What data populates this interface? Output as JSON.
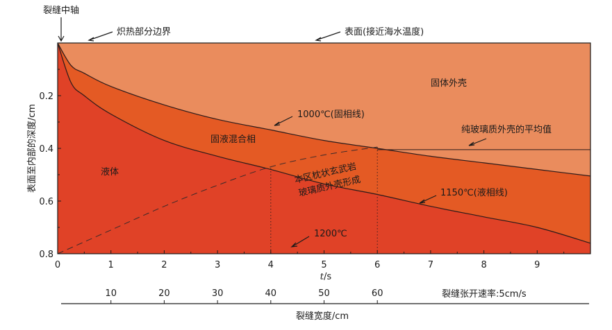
{
  "chart_data": {
    "type": "area",
    "xlabel_var": "t",
    "xlabel_unit": "/s",
    "ylabel": "表面至内部的深度/cm",
    "xlim": [
      0,
      10
    ],
    "ylim": [
      0.8,
      0
    ],
    "x_ticks": [
      "0",
      "1",
      "2",
      "3",
      "4",
      "5",
      "6",
      "7",
      "8",
      "9"
    ],
    "y_ticks": [
      "0.2",
      "0.4",
      "0.6",
      "0.8"
    ],
    "secondary_axis": {
      "label": "裂缝宽度/cm",
      "rate_label": "裂缝张开速率:5cm/s",
      "ticks": [
        {
          "t": 1,
          "label": "10"
        },
        {
          "t": 2,
          "label": "20"
        },
        {
          "t": 3,
          "label": "30"
        },
        {
          "t": 4,
          "label": "40"
        },
        {
          "t": 5,
          "label": "50"
        },
        {
          "t": 6,
          "label": "60"
        }
      ]
    },
    "series": [
      {
        "name": "1000℃(固相线)",
        "x": [
          0,
          0.25,
          0.5,
          1,
          2,
          3,
          4,
          5,
          6,
          7,
          8,
          9,
          10
        ],
        "y": [
          0,
          0.085,
          0.115,
          0.165,
          0.235,
          0.29,
          0.33,
          0.37,
          0.4,
          0.43,
          0.455,
          0.48,
          0.505
        ]
      },
      {
        "name": "1150℃(液相线)",
        "x": [
          0,
          0.25,
          0.5,
          1,
          2,
          3,
          4,
          5,
          6,
          7,
          8,
          9,
          10
        ],
        "y": [
          0,
          0.15,
          0.2,
          0.27,
          0.37,
          0.43,
          0.48,
          0.535,
          0.575,
          0.62,
          0.66,
          0.7,
          0.76
        ]
      },
      {
        "name": "1200℃",
        "x": [
          0,
          1,
          2,
          3,
          4,
          5,
          6
        ],
        "y": [
          0.8,
          0.71,
          0.62,
          0.54,
          0.47,
          0.425,
          0.395
        ]
      },
      {
        "name": "纯玻璃质外壳的平均值",
        "x": [
          6,
          10
        ],
        "y": [
          0.405,
          0.405
        ]
      }
    ],
    "markers": [
      4,
      6
    ],
    "regions": [
      "固体外壳",
      "固液混合相",
      "液体",
      "本区枕状玄武岩",
      "玻璃质外壳形成"
    ],
    "annotations": [
      "裂缝中轴",
      "炽热部分边界",
      "表面(接近海水温度)",
      "1000℃(固相线)",
      "纯玻璃质外壳的平均值",
      "1150℃(液相线)",
      "1200℃"
    ]
  },
  "colors": {
    "solid": "#ea8c5d",
    "mixed": "#e45a24",
    "liquid": "#e04227",
    "frame": "#1a1a1a"
  }
}
